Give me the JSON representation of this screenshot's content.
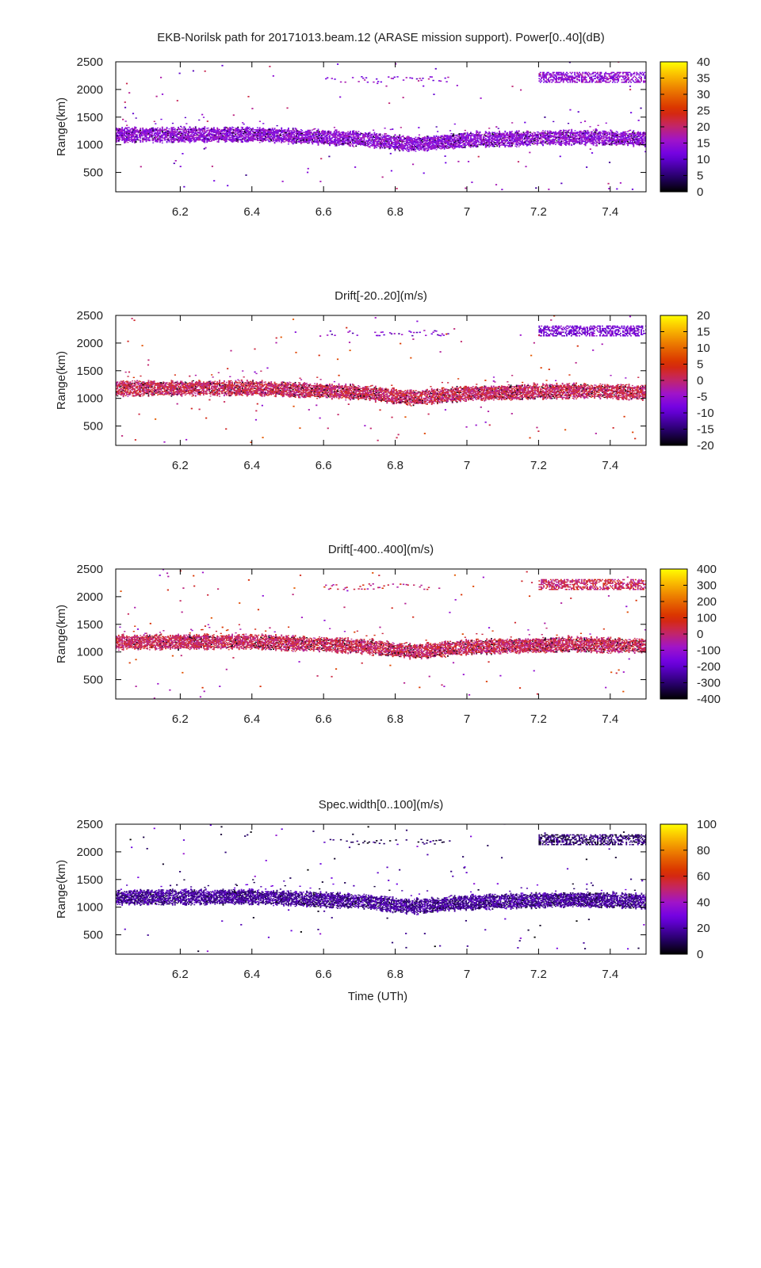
{
  "figure": {
    "title": "EKB-Norilsk path for 20171013.beam.12 (ARASE mission support). Power[0..40](dB)",
    "x_axis_label": "Time (UTh)"
  },
  "chart_data": [
    {
      "type": "heatmap",
      "title": "EKB-Norilsk path for 20171013.beam.12 (ARASE mission support). Power[0..40](dB)",
      "xlabel": "",
      "ylabel": "Range(km)",
      "xlim": [
        6.02,
        7.5
      ],
      "ylim": [
        150,
        2500
      ],
      "xticks": [
        "6.2",
        "6.4",
        "6.6",
        "6.8",
        "7",
        "7.2",
        "7.4"
      ],
      "xtick_values": [
        6.2,
        6.4,
        6.6,
        6.8,
        7.0,
        7.2,
        7.4
      ],
      "yticks": [
        "500",
        "1000",
        "1500",
        "2000",
        "2500"
      ],
      "ytick_values": [
        500,
        1000,
        1500,
        2000,
        2500
      ],
      "colorbar": {
        "range": [
          0,
          40
        ],
        "ticks": [
          "0",
          "5",
          "10",
          "15",
          "20",
          "25",
          "30",
          "35",
          "40"
        ],
        "tick_values": [
          0,
          5,
          10,
          15,
          20,
          25,
          30,
          35,
          40
        ],
        "colormap": "gnuplot-black-purple-red-yellow"
      },
      "band_value": 14,
      "upper_band_value": 14
    },
    {
      "type": "heatmap",
      "title": "Drift[-20..20](m/s)",
      "xlabel": "",
      "ylabel": "Range(km)",
      "xlim": [
        6.02,
        7.5
      ],
      "ylim": [
        150,
        2500
      ],
      "xticks": [
        "6.2",
        "6.4",
        "6.6",
        "6.8",
        "7",
        "7.2",
        "7.4"
      ],
      "xtick_values": [
        6.2,
        6.4,
        6.6,
        6.8,
        7.0,
        7.2,
        7.4
      ],
      "yticks": [
        "500",
        "1000",
        "1500",
        "2000",
        "2500"
      ],
      "ytick_values": [
        500,
        1000,
        1500,
        2000,
        2500
      ],
      "colorbar": {
        "range": [
          -20,
          20
        ],
        "ticks": [
          "-20",
          "-15",
          "-10",
          "-5",
          "0",
          "5",
          "10",
          "15",
          "20"
        ],
        "tick_values": [
          -20,
          -15,
          -10,
          -5,
          0,
          5,
          10,
          15,
          20
        ],
        "colormap": "gnuplot-black-purple-red-yellow"
      },
      "band_value": 1,
      "upper_band_value": -8
    },
    {
      "type": "heatmap",
      "title": "Drift[-400..400](m/s)",
      "xlabel": "",
      "ylabel": "Range(km)",
      "xlim": [
        6.02,
        7.5
      ],
      "ylim": [
        150,
        2500
      ],
      "xticks": [
        "6.2",
        "6.4",
        "6.6",
        "6.8",
        "7",
        "7.2",
        "7.4"
      ],
      "xtick_values": [
        6.2,
        6.4,
        6.6,
        6.8,
        7.0,
        7.2,
        7.4
      ],
      "yticks": [
        "500",
        "1000",
        "1500",
        "2000",
        "2500"
      ],
      "ytick_values": [
        500,
        1000,
        1500,
        2000,
        2500
      ],
      "colorbar": {
        "range": [
          -400,
          400
        ],
        "ticks": [
          "-400",
          "-300",
          "-200",
          "-100",
          "0",
          "100",
          "200",
          "300",
          "400"
        ],
        "tick_values": [
          -400,
          -300,
          -200,
          -100,
          0,
          100,
          200,
          300,
          400
        ],
        "colormap": "gnuplot-black-purple-red-yellow"
      },
      "band_value": 20,
      "upper_band_value": 20
    },
    {
      "type": "heatmap",
      "title": "Spec.width[0..100](m/s)",
      "xlabel": "Time (UTh)",
      "ylabel": "Range(km)",
      "xlim": [
        6.02,
        7.5
      ],
      "ylim": [
        150,
        2500
      ],
      "xticks": [
        "6.2",
        "6.4",
        "6.6",
        "6.8",
        "7",
        "7.2",
        "7.4"
      ],
      "xtick_values": [
        6.2,
        6.4,
        6.6,
        6.8,
        7.0,
        7.2,
        7.4
      ],
      "yticks": [
        "500",
        "1000",
        "1500",
        "2000",
        "2500"
      ],
      "ytick_values": [
        500,
        1000,
        1500,
        2000,
        2500
      ],
      "colorbar": {
        "range": [
          0,
          100
        ],
        "ticks": [
          "0",
          "20",
          "40",
          "60",
          "80",
          "100"
        ],
        "tick_values": [
          0,
          20,
          40,
          60,
          80,
          100
        ],
        "colormap": "gnuplot-black-purple-red-yellow"
      },
      "band_value": 18,
      "upper_band_value": 12
    }
  ],
  "scatter_structure": {
    "main_band_range_km": [
      950,
      1350
    ],
    "main_band_center_km": [
      [
        6.02,
        1170
      ],
      [
        6.4,
        1180
      ],
      [
        6.7,
        1100
      ],
      [
        6.85,
        1000
      ],
      [
        7.0,
        1080
      ],
      [
        7.3,
        1130
      ],
      [
        7.5,
        1100
      ]
    ],
    "upper_band_range_km": [
      2120,
      2300
    ],
    "upper_band_time_h": [
      7.2,
      7.5
    ],
    "secondary_band_range_km": [
      2120,
      2220
    ],
    "secondary_band_time_h": [
      6.6,
      6.95
    ]
  }
}
